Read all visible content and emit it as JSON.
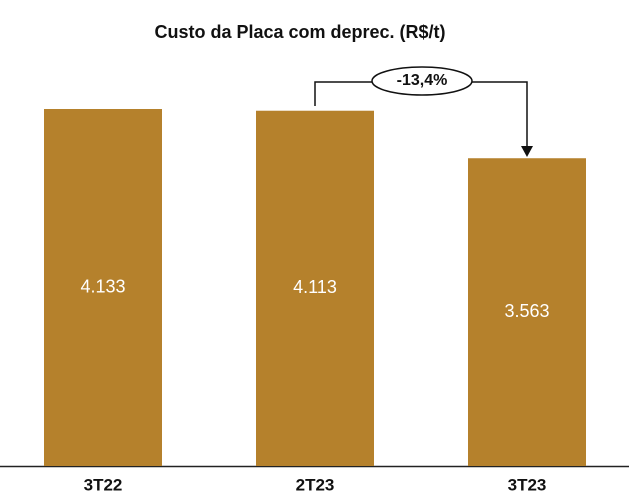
{
  "chart_data": {
    "type": "bar",
    "title": "Custo da Placa com deprec. (R$/t)",
    "categories": [
      "3T22",
      "2T23",
      "3T23"
    ],
    "values": [
      4133,
      4113,
      3563
    ],
    "value_labels": [
      "4.133",
      "4.113",
      "3.563"
    ],
    "color": "#b5812c",
    "annotation": "-13,4%"
  }
}
